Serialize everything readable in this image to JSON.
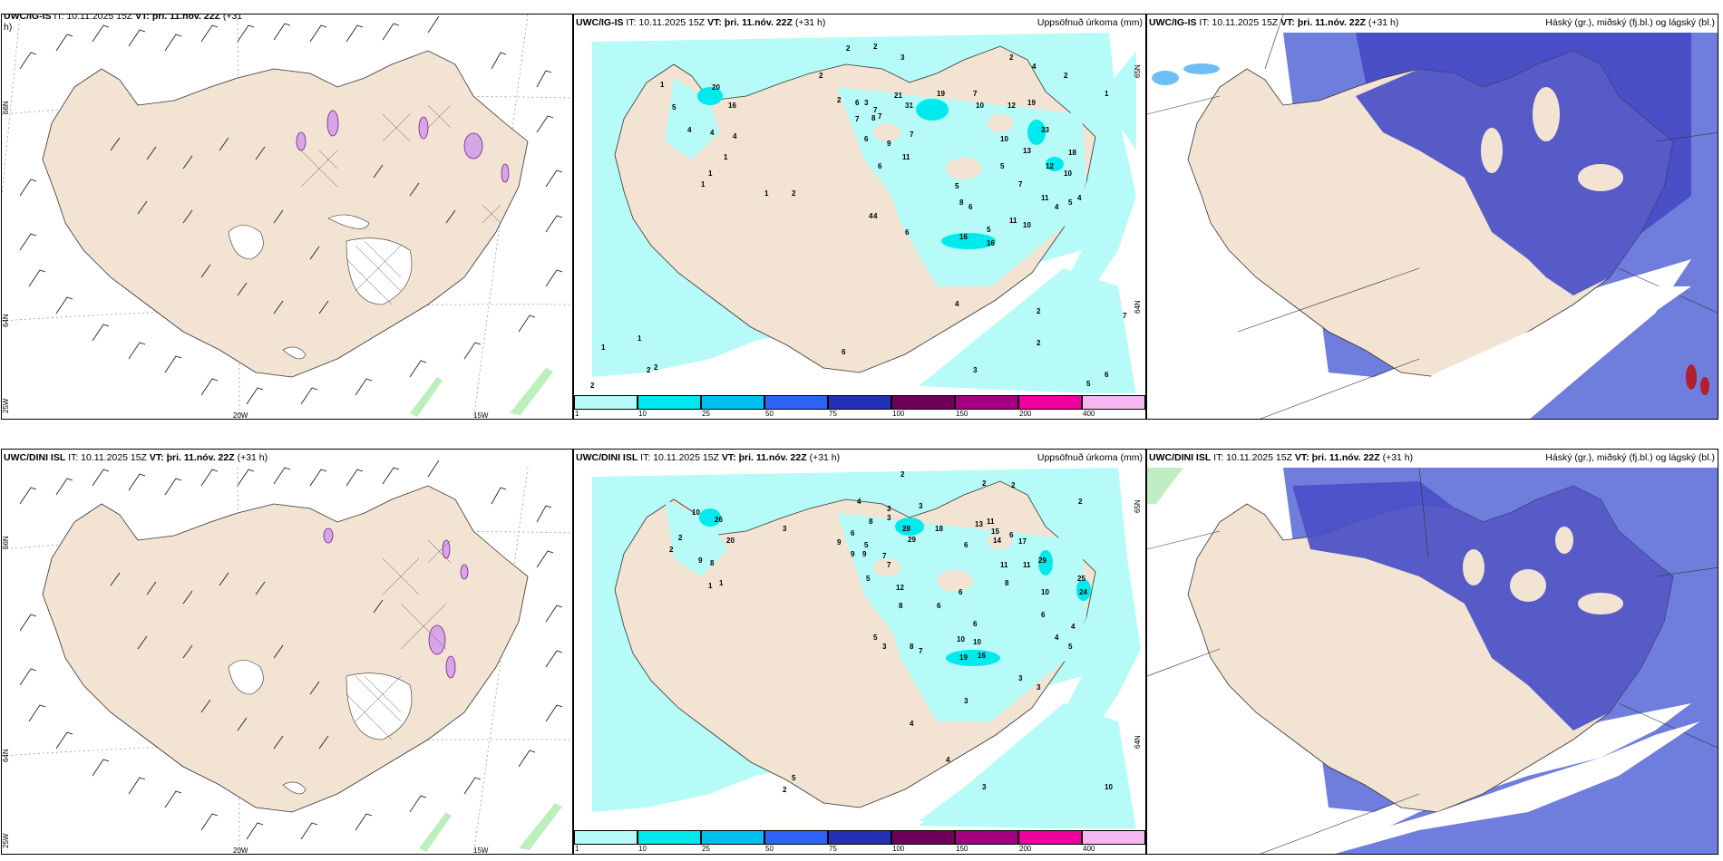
{
  "panels": [
    {
      "id": "top-left",
      "title_prefix": "UWC/IG-IS",
      "title_it": "IT: 10.11.2025 15Z",
      "title_vt_label": "VT:",
      "title_vt": "þri. 11.nóv. 22Z",
      "title_offset": "(+31",
      "title_wrap": "h)",
      "lat_labels": [
        "66N",
        "64N",
        "25W"
      ],
      "lon_labels": [
        "20W",
        "15W"
      ]
    },
    {
      "id": "top-middle",
      "title_prefix": "UWC/IG-IS",
      "title_it": "IT: 10.11.2025 15Z",
      "title_vt_label": "VT:",
      "title_vt": "þri. 11.nóv. 22Z",
      "title_offset": "(+31 h)",
      "right_label": "Uppsöfnuð úrkoma (mm)",
      "lat_labels": [
        "65N",
        "64N"
      ],
      "values": [
        "2",
        "2",
        "3",
        "2",
        "4",
        "2",
        "2",
        "1",
        "1",
        "5",
        "4",
        "4",
        "4",
        "20",
        "16",
        "1",
        "1",
        "1",
        "6",
        "2",
        "21",
        "31",
        "19",
        "7",
        "10",
        "12",
        "19",
        "7",
        "3",
        "7",
        "6",
        "9",
        "7",
        "7",
        "8",
        "11",
        "6",
        "33",
        "10",
        "13",
        "18",
        "12",
        "10",
        "5",
        "7",
        "11",
        "8",
        "6",
        "5",
        "4",
        "5",
        "4",
        "11",
        "10",
        "5",
        "16",
        "16",
        "4",
        "6",
        "4",
        "2",
        "2",
        "1",
        "2",
        "1",
        "2",
        "1",
        "2",
        "6",
        "2",
        "3",
        "7",
        "5",
        "6",
        "4"
      ]
    },
    {
      "id": "top-right",
      "title_prefix": "UWC/IG-IS",
      "title_it": "IT: 10.11.2025 15Z",
      "title_vt_label": "VT:",
      "title_vt": "þri. 11.nóv. 22Z",
      "title_offset": "(+31 h)",
      "right_label": "Háský (gr.), miðský (fj.bl.) og lágský (bl.)"
    },
    {
      "id": "bottom-left",
      "title_prefix": "UWC/DINI ISL",
      "title_it": "IT: 10.11.2025 15Z",
      "title_vt_label": "VT:",
      "title_vt": "þri. 11.nóv. 22Z",
      "title_offset": "(+31 h)",
      "lat_labels": [
        "66N",
        "64N",
        "25W"
      ],
      "lon_labels": [
        "20W",
        "15W"
      ]
    },
    {
      "id": "bottom-middle",
      "title_prefix": "UWC/DINI ISL",
      "title_it": "IT: 10.11.2025 15Z",
      "title_vt_label": "VT:",
      "title_vt": "þri. 11.nóv. 22Z",
      "title_offset": "(+31 h)",
      "right_label": "Uppsöfnuð úrkoma (mm)",
      "lat_labels": [
        "65N",
        "64N"
      ],
      "values": [
        "2",
        "2",
        "2",
        "2",
        "10",
        "26",
        "20",
        "3",
        "2",
        "2",
        "9",
        "8",
        "1",
        "1",
        "4",
        "8",
        "5",
        "3",
        "3",
        "3",
        "28",
        "29",
        "18",
        "13",
        "11",
        "15",
        "14",
        "17",
        "6",
        "9",
        "6",
        "7",
        "9",
        "9",
        "6",
        "5",
        "7",
        "12",
        "8",
        "6",
        "11",
        "8",
        "11",
        "29",
        "10",
        "25",
        "24",
        "6",
        "4",
        "8",
        "6",
        "10",
        "6",
        "10",
        "4",
        "5",
        "7",
        "19",
        "16",
        "3",
        "5",
        "3",
        "3",
        "5",
        "4",
        "3",
        "3",
        "4",
        "10",
        "2"
      ]
    },
    {
      "id": "bottom-right",
      "title_prefix": "UWC/DINI ISL",
      "title_it": "IT: 10.11.2025 15Z",
      "title_vt_label": "VT:",
      "title_vt": "þri. 11.nóv. 22Z",
      "title_offset": "(+31 h)",
      "right_label": "Háský (gr.), miðský (fj.bl.) og lágský (bl.)"
    }
  ],
  "colorbar": {
    "colors": [
      "#b6fbf8",
      "#00e9ec",
      "#00c0f0",
      "#2e62f5",
      "#2430b5",
      "#6f0058",
      "#a40082",
      "#f0009d",
      "#f5b6f2"
    ],
    "ticks": [
      "1",
      "10",
      "25",
      "50",
      "75",
      "100",
      "150",
      "200",
      "400"
    ]
  },
  "colors": {
    "land": "#f2e3d2",
    "precip_light": "#b6fbf8",
    "precip_mid": "#00e9ec",
    "cloud_high": "#7a7fd8",
    "cloud_mid": "#4a4fc7",
    "cloud_low": "#6f7ddc",
    "sea_white": "#ffffff"
  }
}
